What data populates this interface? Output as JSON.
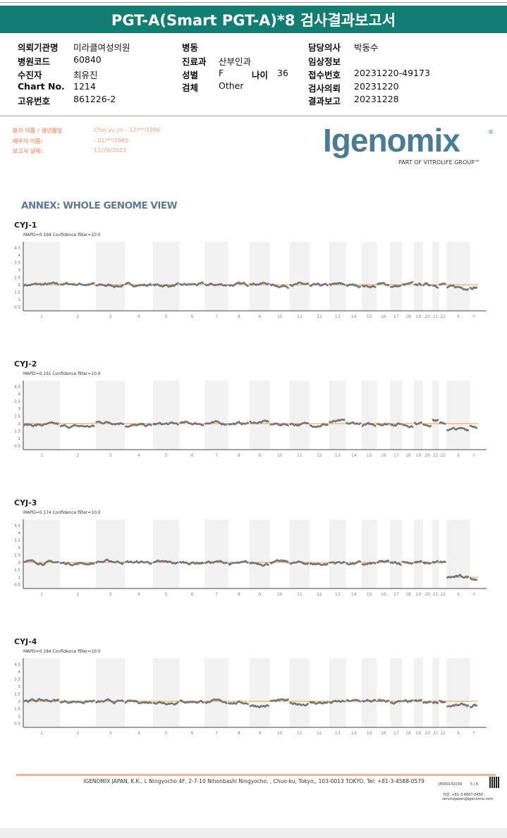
{
  "header": {
    "title": "PGT-A(Smart PGT-A)*8 검사결과보고서"
  },
  "info": {
    "institution_label": "의뢰기관명",
    "institution": "미라클여성의원",
    "hospital_code_label": "병원코드",
    "hospital_code": "60840",
    "patient_label": "수진자",
    "patient": "최유진",
    "chart_no_label": "Chart No.",
    "chart_no": "1214",
    "unique_no_label": "고유번호",
    "unique_no": "861226-2",
    "ward_label": "병동",
    "department_label": "진료과",
    "department": "산부인과",
    "sex_label": "성별",
    "sex": "F",
    "age_label": "나이",
    "age": "36",
    "specimen_label": "검체",
    "specimen": "Other",
    "doctor_label": "담당의사",
    "doctor": "박동수",
    "clinical_label": "임상정보",
    "receipt_label": "접수번호",
    "receipt": "20231220-49173",
    "request_label": "검사의뢰",
    "request": "20231220",
    "report_label": "결과보고",
    "report": "20231228"
  },
  "patient_block": {
    "name_label": "환자 이름 / 생년월일",
    "name": "Choi yu jin - 12/**/1986",
    "partner_label": "배우자 이름:",
    "partner": "- 01/**/1985",
    "date_label": "보고서 날짜:",
    "date": "12/28/2023"
  },
  "logo": {
    "name": "Igenomix",
    "sub": "PART OF VITROLIFE GROUP™"
  },
  "annex_title": "ANNEX: WHOLE GENOME VIEW",
  "chart_data": [
    {
      "type": "scatter",
      "title": "CYJ-1",
      "subtitle": "MAPD=0.194 Confidence filter=10.0",
      "ylim": [
        0,
        4.5
      ],
      "yticks": [
        "4.5",
        "4",
        "3.5",
        "3",
        "2.5",
        "2",
        "1.5",
        "1",
        "0.5"
      ],
      "categories": [
        "1",
        "2",
        "3",
        "4",
        "5",
        "6",
        "7",
        "8",
        "9",
        "10",
        "11",
        "12",
        "13",
        "14",
        "15",
        "16",
        "17",
        "18",
        "19",
        "20",
        "21",
        "22",
        "X",
        "Y"
      ],
      "copy_number": [
        2,
        2.05,
        1.95,
        2,
        1.95,
        2,
        2,
        2,
        2.1,
        1.95,
        2,
        1.9,
        2,
        1.95,
        1.9,
        2,
        1.9,
        2,
        2.05,
        2,
        2,
        2,
        1.8,
        1.85
      ],
      "reference": [
        2,
        2,
        2,
        2,
        2,
        2,
        2,
        2,
        2,
        2,
        2,
        2,
        2,
        2,
        2,
        2,
        2,
        2,
        2,
        2,
        2,
        2,
        2,
        2
      ]
    },
    {
      "type": "scatter",
      "title": "CYJ-2",
      "subtitle": "MAPD=0.191 Confidence filter=10.0",
      "ylim": [
        0,
        4.5
      ],
      "yticks": [
        "4.5",
        "4",
        "3.5",
        "3",
        "2.5",
        "2",
        "1.5",
        "1",
        "0.5"
      ],
      "categories": [
        "1",
        "2",
        "3",
        "4",
        "5",
        "6",
        "7",
        "8",
        "9",
        "10",
        "11",
        "12",
        "13",
        "14",
        "15",
        "16",
        "17",
        "18",
        "19",
        "20",
        "21",
        "22",
        "X",
        "Y"
      ],
      "copy_number": [
        1.9,
        1.8,
        2.1,
        1.85,
        1.95,
        2,
        2,
        2,
        2.1,
        1.95,
        1.95,
        1.95,
        2.1,
        2,
        1.9,
        2,
        2,
        1.9,
        2,
        2,
        2.2,
        2,
        1.6,
        1.85
      ],
      "reference": [
        2,
        2,
        2,
        2,
        2,
        2,
        2,
        2,
        2,
        2,
        2,
        2,
        2,
        2,
        2,
        2,
        2,
        2,
        2,
        2,
        2,
        2,
        2,
        2
      ]
    },
    {
      "type": "scatter",
      "title": "CYJ-3",
      "subtitle": "MAPD=0.174 Confidence filter=10.0",
      "ylim": [
        0,
        4.5
      ],
      "yticks": [
        "4.5",
        "4",
        "3.5",
        "3",
        "2.5",
        "2",
        "1.5",
        "1",
        "0.5"
      ],
      "categories": [
        "1",
        "2",
        "3",
        "4",
        "5",
        "6",
        "7",
        "8",
        "9",
        "10",
        "11",
        "12",
        "13",
        "14",
        "15",
        "16",
        "17",
        "18",
        "19",
        "20",
        "21",
        "22",
        "X",
        "Y"
      ],
      "copy_number": [
        2,
        1.95,
        2.05,
        2,
        1.95,
        2,
        2,
        1.9,
        1.95,
        2,
        1.95,
        1.9,
        2,
        1.95,
        1.9,
        2,
        1.95,
        2,
        2,
        1.95,
        2,
        2,
        1,
        0.95
      ],
      "reference": [
        2,
        2,
        2,
        2,
        2,
        2,
        2,
        2,
        2,
        2,
        2,
        2,
        2,
        2,
        2,
        2,
        2,
        2,
        2,
        2,
        2,
        2,
        1,
        1
      ]
    },
    {
      "type": "scatter",
      "title": "CYJ-4",
      "subtitle": "MAPD=0.184 Confidence filter=10.0",
      "ylim": [
        0,
        4.5
      ],
      "yticks": [
        "4.5",
        "4",
        "3.5",
        "3",
        "2.5",
        "2",
        "1.5",
        "1",
        "0.5"
      ],
      "categories": [
        "1",
        "2",
        "3",
        "4",
        "5",
        "6",
        "7",
        "8",
        "9",
        "10",
        "11",
        "12",
        "13",
        "14",
        "15",
        "16",
        "17",
        "18",
        "19",
        "20",
        "21",
        "22",
        "X",
        "Y"
      ],
      "copy_number": [
        2.05,
        2,
        1.95,
        1.95,
        1.95,
        2,
        1.95,
        1.9,
        1.7,
        2,
        1.85,
        1.9,
        1.95,
        2,
        2,
        2,
        1.95,
        1.95,
        2,
        1.9,
        1.95,
        2,
        1.7,
        1.65
      ],
      "reference": [
        2,
        2,
        2,
        2,
        2,
        2,
        2,
        2,
        2,
        2,
        2,
        2,
        2,
        2,
        2,
        2,
        2,
        2,
        2,
        2,
        2,
        2,
        2,
        2
      ]
    }
  ],
  "footer": {
    "address": "IGENOMIX JAPAN, K.K., L Ningyocho 4F, 2-7-10 Nihonbashi Ningyocho, , Chuo-ku, Tokyo,, 103-0013 TOKYO, Tel: +81-3-4588-0579",
    "doc_id": "JP000141039",
    "page": "5 | 6",
    "support": "지원: +81-3-6667-0456 -",
    "email": "servicejapan@igenomix.com"
  },
  "colors": {
    "banner": "#127e73",
    "points": "#777777",
    "reference": "#e8a33a",
    "band": "#f2f2f2",
    "accent": "#f0b597"
  }
}
